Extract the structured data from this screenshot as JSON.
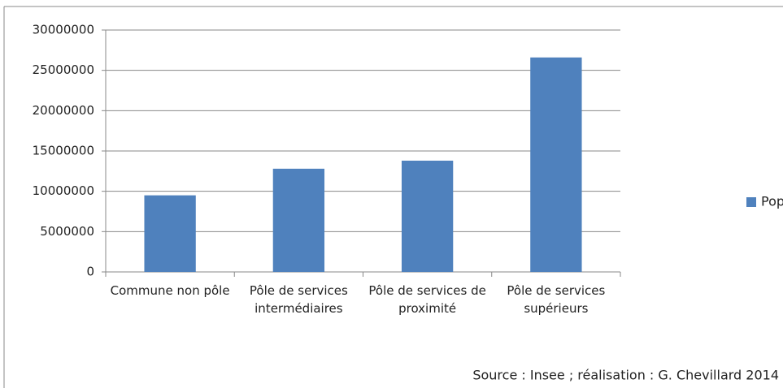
{
  "chart_data": {
    "type": "bar",
    "categories": [
      "Commune non pôle",
      "Pôle de services intermédiaires",
      "Pôle de services de proximité",
      "Pôle de services supérieurs"
    ],
    "series": [
      {
        "name": "Population",
        "color": "#4f81bd",
        "values": [
          9500000,
          12800000,
          13800000,
          26600000
        ]
      }
    ],
    "ylim": [
      0,
      30000000
    ],
    "yticks": [
      0,
      5000000,
      10000000,
      15000000,
      20000000,
      25000000,
      30000000
    ],
    "grid": true,
    "legend": "right",
    "source": "Source : Insee ; réalisation : G. Chevillard 2014"
  }
}
